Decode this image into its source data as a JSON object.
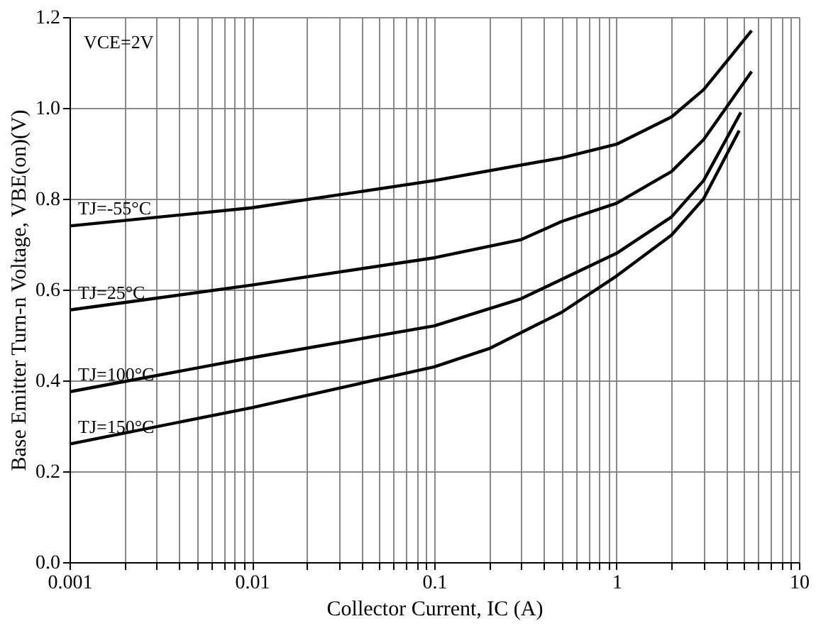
{
  "chart_data": {
    "type": "line",
    "xlabel": "Collector Current, IC (A)",
    "ylabel": "Base Emitter Turn-n Voltage, VBE(on)(V)",
    "log": "x",
    "grid": true,
    "marker": "none",
    "line_style": "solid",
    "xlim": [
      0.001,
      10
    ],
    "ylim": [
      0,
      1.2
    ],
    "xticks": [
      0.001,
      {
        "value": 0.002,
        "label": null
      },
      {
        "value": 0.003,
        "label": null
      },
      {
        "value": 0.004,
        "label": null
      },
      {
        "value": 0.005,
        "label": null
      },
      {
        "value": 0.006,
        "label": null
      },
      {
        "value": 0.007,
        "label": null
      },
      {
        "value": 0.008,
        "label": null
      },
      {
        "value": 0.009,
        "label": null
      },
      0.01,
      {
        "value": 0.02,
        "label": null
      },
      {
        "value": 0.03,
        "label": null
      },
      {
        "value": 0.04,
        "label": null
      },
      {
        "value": 0.05,
        "label": null
      },
      {
        "value": 0.06,
        "label": null
      },
      {
        "value": 0.07,
        "label": null
      },
      {
        "value": 0.08,
        "label": null
      },
      {
        "value": 0.09,
        "label": null
      },
      0.1,
      {
        "value": 0.2,
        "label": null
      },
      {
        "value": 0.3,
        "label": null
      },
      {
        "value": 0.4,
        "label": null
      },
      {
        "value": 0.5,
        "label": null
      },
      {
        "value": 0.6,
        "label": null
      },
      {
        "value": 0.7,
        "label": null
      },
      {
        "value": 0.8,
        "label": null
      },
      {
        "value": 0.9,
        "label": null
      },
      1,
      {
        "value": 2,
        "label": null
      },
      {
        "value": 3,
        "label": null
      },
      {
        "value": 4,
        "label": null
      },
      {
        "value": 5,
        "label": null
      },
      {
        "value": 6,
        "label": null
      },
      {
        "value": 7,
        "label": null
      },
      {
        "value": 8,
        "label": null
      },
      {
        "value": 9,
        "label": null
      },
      10
    ],
    "yticks": [
      {
        "value": 0,
        "label": "0.0"
      },
      0.2,
      0.4,
      0.6,
      0.8,
      {
        "value": 1,
        "label": "1.0"
      },
      1.2
    ],
    "annotations": [
      "VCE=2V"
    ],
    "series": [
      {
        "name": "TJ=-55°C",
        "color": "#000000",
        "x": [
          0.001,
          0.01,
          0.1,
          0.5,
          1,
          2,
          3,
          5.5
        ],
        "values": [
          0.74,
          0.78,
          0.84,
          0.89,
          0.92,
          0.98,
          1.04,
          1.17
        ]
      },
      {
        "name": "TJ=25°C",
        "color": "#000000",
        "x": [
          0.001,
          0.01,
          0.1,
          0.3,
          0.5,
          1,
          2,
          3,
          5.5
        ],
        "values": [
          0.555,
          0.61,
          0.67,
          0.71,
          0.75,
          0.79,
          0.86,
          0.93,
          1.08
        ]
      },
      {
        "name": "TJ=100°C",
        "color": "#000000",
        "x": [
          0.001,
          0.01,
          0.1,
          0.3,
          1,
          2,
          3,
          4.8
        ],
        "values": [
          0.375,
          0.45,
          0.52,
          0.58,
          0.68,
          0.76,
          0.84,
          0.99
        ]
      },
      {
        "name": "TJ=150°C",
        "color": "#000000",
        "x": [
          0.001,
          0.01,
          0.1,
          0.2,
          0.5,
          1,
          2,
          3,
          4.7
        ],
        "values": [
          0.26,
          0.34,
          0.43,
          0.47,
          0.55,
          0.63,
          0.72,
          0.8,
          0.95
        ]
      }
    ]
  }
}
